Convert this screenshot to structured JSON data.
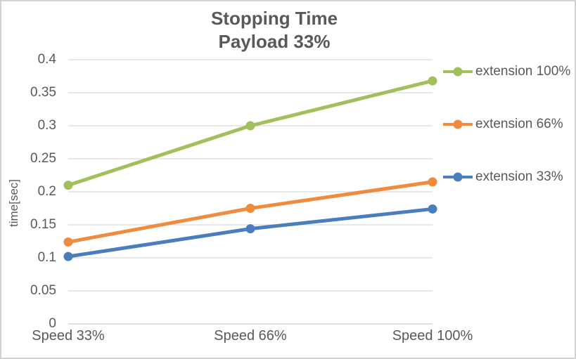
{
  "chart_data": {
    "type": "line",
    "title": "Stopping Time",
    "subtitle": "Payload 33%",
    "xlabel": "",
    "ylabel": "time[sec]",
    "categories": [
      "Speed 33%",
      "Speed 66%",
      "Speed 100%"
    ],
    "series": [
      {
        "name": "extension 100%",
        "color": "#a0c05c",
        "values": [
          0.21,
          0.3,
          0.368
        ]
      },
      {
        "name": "extension 66%",
        "color": "#f08a3c",
        "values": [
          0.124,
          0.175,
          0.215
        ]
      },
      {
        "name": "extension 33%",
        "color": "#4a7dbd",
        "values": [
          0.102,
          0.144,
          0.174
        ]
      }
    ],
    "ylim": [
      0,
      0.4
    ],
    "ytick_labels": [
      "0",
      "0.05",
      "0.1",
      "0.15",
      "0.2",
      "0.25",
      "0.3",
      "0.35",
      "0.4"
    ],
    "grid": "horizontal",
    "legend_position": "right",
    "marker": "circle"
  },
  "style": {
    "text_color": "#595959",
    "gridline_color": "#d9d9d9",
    "axis_line_color": "#c9c9c9",
    "background": "#ffffff",
    "border_color": "#d2d2d2"
  }
}
